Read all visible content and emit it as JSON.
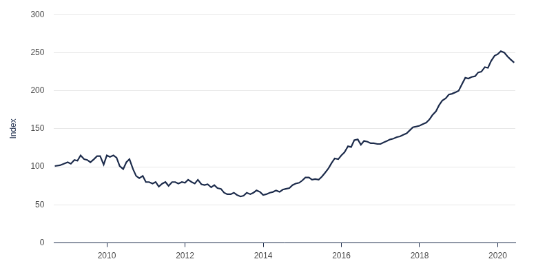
{
  "chart_data": {
    "type": "line",
    "y_label": "Index",
    "color": "#1c2b4b",
    "grid": true,
    "xlim": [
      2008.65,
      2020.45
    ],
    "xticks": [
      2010,
      2012,
      2014,
      2016,
      2018,
      2020
    ],
    "ylim": [
      0,
      300
    ],
    "yticks": [
      0,
      50,
      100,
      150,
      200,
      250,
      300
    ],
    "x": [
      2008.67,
      2008.8,
      2008.9,
      2009.0,
      2009.08,
      2009.17,
      2009.25,
      2009.33,
      2009.42,
      2009.5,
      2009.58,
      2009.67,
      2009.75,
      2009.83,
      2009.92,
      2010.0,
      2010.08,
      2010.17,
      2010.25,
      2010.33,
      2010.42,
      2010.5,
      2010.58,
      2010.67,
      2010.75,
      2010.83,
      2010.92,
      2011.0,
      2011.08,
      2011.17,
      2011.25,
      2011.33,
      2011.42,
      2011.5,
      2011.58,
      2011.67,
      2011.75,
      2011.83,
      2011.92,
      2012.0,
      2012.08,
      2012.17,
      2012.25,
      2012.33,
      2012.42,
      2012.5,
      2012.58,
      2012.67,
      2012.75,
      2012.83,
      2012.92,
      2013.0,
      2013.08,
      2013.17,
      2013.25,
      2013.33,
      2013.42,
      2013.5,
      2013.58,
      2013.67,
      2013.75,
      2013.83,
      2013.92,
      2014.0,
      2014.08,
      2014.17,
      2014.25,
      2014.33,
      2014.42,
      2014.5,
      2014.58,
      2014.67,
      2014.75,
      2014.83,
      2014.92,
      2015.0,
      2015.08,
      2015.17,
      2015.25,
      2015.33,
      2015.42,
      2015.5,
      2015.58,
      2015.67,
      2015.75,
      2015.83,
      2015.92,
      2016.0,
      2016.08,
      2016.17,
      2016.25,
      2016.33,
      2016.42,
      2016.5,
      2016.58,
      2016.67,
      2016.75,
      2016.83,
      2016.92,
      2017.0,
      2017.08,
      2017.17,
      2017.25,
      2017.33,
      2017.42,
      2017.5,
      2017.58,
      2017.67,
      2017.75,
      2017.83,
      2017.92,
      2018.0,
      2018.08,
      2018.17,
      2018.25,
      2018.33,
      2018.42,
      2018.5,
      2018.58,
      2018.67,
      2018.75,
      2018.83,
      2018.92,
      2019.0,
      2019.08,
      2019.17,
      2019.25,
      2019.33,
      2019.42,
      2019.5,
      2019.58,
      2019.67,
      2019.75,
      2019.83,
      2019.92,
      2020.0,
      2020.08,
      2020.17,
      2020.25,
      2020.33,
      2020.42
    ],
    "values": [
      101,
      102,
      104,
      106,
      104,
      109,
      108,
      115,
      110,
      109,
      106,
      110,
      114,
      114,
      103,
      115,
      113,
      115,
      112,
      101,
      97,
      106,
      110,
      97,
      88,
      85,
      88,
      80,
      80,
      78,
      80,
      74,
      78,
      80,
      75,
      80,
      80,
      78,
      80,
      79,
      83,
      80,
      78,
      83,
      77,
      76,
      77,
      73,
      76,
      72,
      71,
      66,
      64,
      64,
      66,
      63,
      61,
      62,
      66,
      64,
      66,
      69,
      67,
      63,
      64,
      66,
      67,
      69,
      67,
      70,
      71,
      72,
      76,
      78,
      79,
      82,
      86,
      86,
      83,
      84,
      83,
      87,
      92,
      98,
      105,
      111,
      110,
      115,
      119,
      127,
      126,
      135,
      136,
      129,
      134,
      133,
      131,
      131,
      130,
      130,
      132,
      134,
      136,
      137,
      139,
      140,
      142,
      144,
      148,
      152,
      153,
      154,
      156,
      158,
      162,
      168,
      173,
      181,
      187,
      190,
      195,
      196,
      198,
      200,
      208,
      217,
      216,
      218,
      219,
      224,
      225,
      231,
      230,
      239,
      246,
      248,
      252,
      250,
      245,
      241,
      237
    ]
  }
}
